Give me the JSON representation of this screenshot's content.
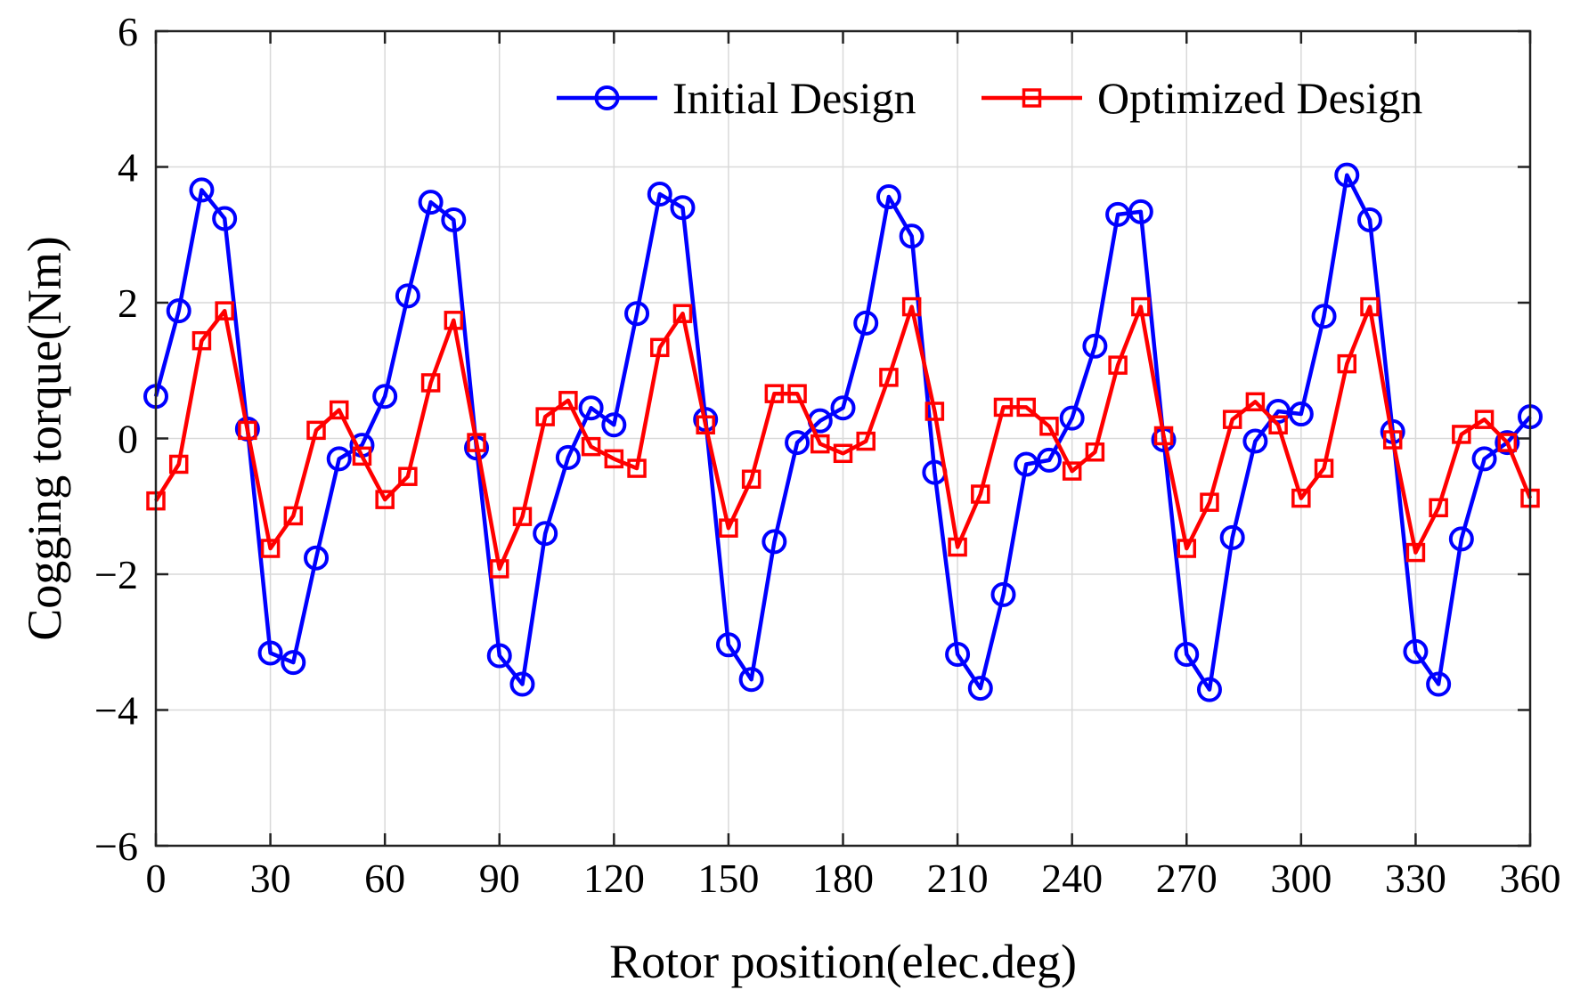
{
  "chart_data": {
    "type": "line",
    "title": "",
    "xlabel": "Rotor position(elec.deg)",
    "ylabel": "Cogging torque(Nm)",
    "xlim": [
      0,
      360
    ],
    "ylim": [
      -6,
      6
    ],
    "xticks": [
      0,
      30,
      60,
      90,
      120,
      150,
      180,
      210,
      240,
      270,
      300,
      330,
      360
    ],
    "yticks": [
      -6,
      -4,
      -2,
      0,
      2,
      4,
      6
    ],
    "ytick_labels": [
      "−6",
      "−4",
      "−2",
      "0",
      "2",
      "4",
      "6"
    ],
    "grid": true,
    "legend_position": "top-right",
    "x": [
      0,
      6,
      12,
      18,
      24,
      30,
      36,
      42,
      48,
      54,
      60,
      66,
      72,
      78,
      84,
      90,
      96,
      102,
      108,
      114,
      120,
      126,
      132,
      138,
      144,
      150,
      156,
      162,
      168,
      174,
      180,
      186,
      192,
      198,
      204,
      210,
      216,
      222,
      228,
      234,
      240,
      246,
      252,
      258,
      264,
      270,
      276,
      282,
      288,
      294,
      300,
      306,
      312,
      318,
      324,
      330,
      336,
      342,
      348,
      354,
      360
    ],
    "series": [
      {
        "name": "Initial Design",
        "color": "#0000ff",
        "marker": "circle",
        "values": [
          0.62,
          1.88,
          3.66,
          3.24,
          0.14,
          -3.16,
          -3.3,
          -1.76,
          -0.3,
          -0.1,
          0.62,
          2.1,
          3.48,
          3.22,
          -0.14,
          -3.2,
          -3.62,
          -1.4,
          -0.28,
          0.45,
          0.2,
          1.84,
          3.6,
          3.4,
          0.28,
          -3.04,
          -3.55,
          -1.52,
          -0.06,
          0.26,
          0.45,
          1.7,
          3.56,
          2.98,
          -0.5,
          -3.18,
          -3.68,
          -2.3,
          -0.38,
          -0.32,
          0.3,
          1.36,
          3.3,
          3.34,
          -0.02,
          -3.18,
          -3.7,
          -1.46,
          -0.04,
          0.4,
          0.36,
          1.8,
          3.88,
          3.22,
          0.1,
          -3.14,
          -3.62,
          -1.48,
          -0.3,
          -0.06,
          0.32
        ]
      },
      {
        "name": "Optimized Design",
        "color": "#ff0000",
        "marker": "square",
        "values": [
          -0.92,
          -0.38,
          1.44,
          1.88,
          0.12,
          -1.62,
          -1.14,
          0.12,
          0.42,
          -0.26,
          -0.9,
          -0.56,
          0.82,
          1.74,
          -0.06,
          -1.92,
          -1.15,
          0.32,
          0.56,
          -0.12,
          -0.3,
          -0.44,
          1.34,
          1.84,
          0.2,
          -1.32,
          -0.6,
          0.66,
          0.66,
          -0.08,
          -0.22,
          -0.04,
          0.9,
          1.94,
          0.4,
          -1.6,
          -0.82,
          0.46,
          0.46,
          0.18,
          -0.48,
          -0.2,
          1.08,
          1.94,
          0.04,
          -1.62,
          -0.94,
          0.28,
          0.54,
          0.2,
          -0.88,
          -0.44,
          1.1,
          1.94,
          -0.02,
          -1.68,
          -1.02,
          0.06,
          0.28,
          -0.06,
          -0.88
        ]
      }
    ]
  }
}
